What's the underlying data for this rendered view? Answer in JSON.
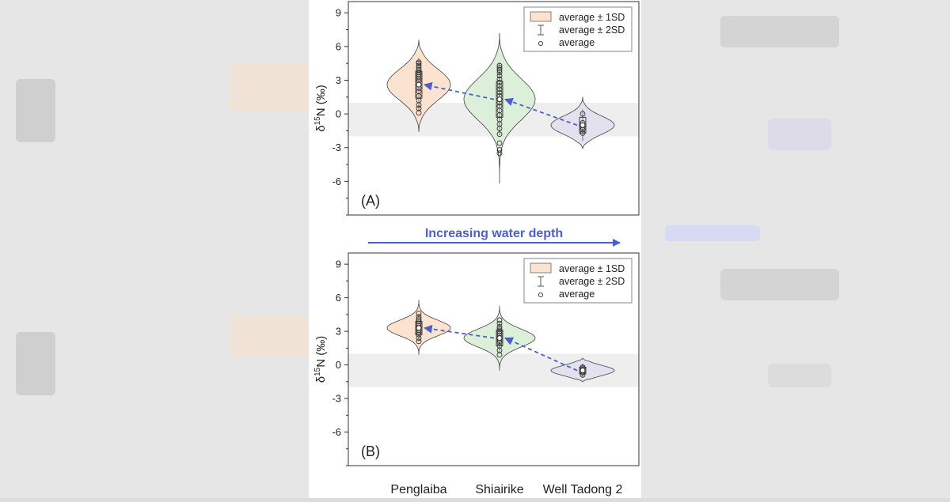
{
  "banner": {
    "text": "Increasing water depth",
    "color": "#4a5fd0"
  },
  "colors": {
    "series": [
      "#fbe3d0",
      "#dcefd9",
      "#e3e1ee"
    ],
    "outline": "#444444",
    "band": "#eeeeee",
    "arrow": "#4a5fd0"
  },
  "legend": {
    "box_label": "average ± 1SD",
    "whisker_label": "average ± 2SD",
    "point_label": "average"
  },
  "chart_data": [
    {
      "type": "violin",
      "panel_label": "(A)",
      "ylabel_parts": [
        "δ",
        "15",
        "N (‰)"
      ],
      "ylim": [
        -9,
        10
      ],
      "yticks": [
        -6,
        -3,
        0,
        3,
        6,
        9
      ],
      "categories": [
        "Penglaiba",
        "Shiairike",
        "Well Tadong 2"
      ],
      "band": [
        -2,
        1
      ],
      "grid": false,
      "legend_position": "top-right",
      "series": [
        {
          "category": "Penglaiba",
          "mean": 2.6,
          "sd": 1.2,
          "min": -1.6,
          "max": 6.6,
          "points": [
            0.1,
            0.5,
            0.8,
            1.2,
            1.6,
            2.0,
            2.3,
            2.6,
            2.9,
            3.1,
            3.3,
            3.5,
            3.7,
            3.9,
            4.1,
            4.3,
            4.5,
            4.6
          ]
        },
        {
          "category": "Shiairike",
          "mean": 1.3,
          "sd": 1.6,
          "min": -6.2,
          "max": 7.2,
          "points": [
            -3.5,
            -3.2,
            -2.6,
            -1.8,
            -1.3,
            -0.9,
            -0.5,
            -0.1,
            0.3,
            0.7,
            1.0,
            1.3,
            1.6,
            1.9,
            2.2,
            2.5,
            2.8,
            3.1,
            3.4,
            3.7,
            3.9,
            4.1,
            4.3
          ]
        },
        {
          "category": "Well Tadong 2",
          "mean": -1.0,
          "sd": 0.7,
          "min": -3.1,
          "max": 1.5,
          "points": [
            -1.7,
            -1.4,
            -1.2,
            -1.0,
            -0.8,
            0.0
          ]
        }
      ]
    },
    {
      "type": "violin",
      "panel_label": "(B)",
      "ylabel_parts": [
        "δ",
        "15",
        "N (‰)"
      ],
      "ylim": [
        -9,
        10
      ],
      "yticks": [
        -6,
        -3,
        0,
        3,
        6,
        9
      ],
      "categories": [
        "Penglaiba",
        "Shiairike",
        "Well Tadong 2"
      ],
      "band": [
        -2,
        1
      ],
      "grid": false,
      "legend_position": "top-right",
      "series": [
        {
          "category": "Penglaiba",
          "mean": 3.3,
          "sd": 0.6,
          "min": 0.9,
          "max": 5.8,
          "points": [
            2.1,
            2.4,
            2.7,
            2.9,
            3.1,
            3.3,
            3.5,
            3.7,
            3.9,
            4.1,
            4.3,
            4.6
          ]
        },
        {
          "category": "Shiairike",
          "mean": 2.4,
          "sd": 0.7,
          "min": -0.5,
          "max": 5.3,
          "points": [
            0.9,
            1.3,
            1.7,
            2.0,
            2.2,
            2.4,
            2.6,
            2.8,
            3.0,
            3.2,
            3.4,
            3.7,
            4.0
          ]
        },
        {
          "category": "Well Tadong 2",
          "mean": -0.5,
          "sd": 0.3,
          "min": -1.5,
          "max": 0.6,
          "points": [
            -0.9,
            -0.7,
            -0.5,
            -0.3,
            -0.2
          ]
        }
      ]
    }
  ]
}
